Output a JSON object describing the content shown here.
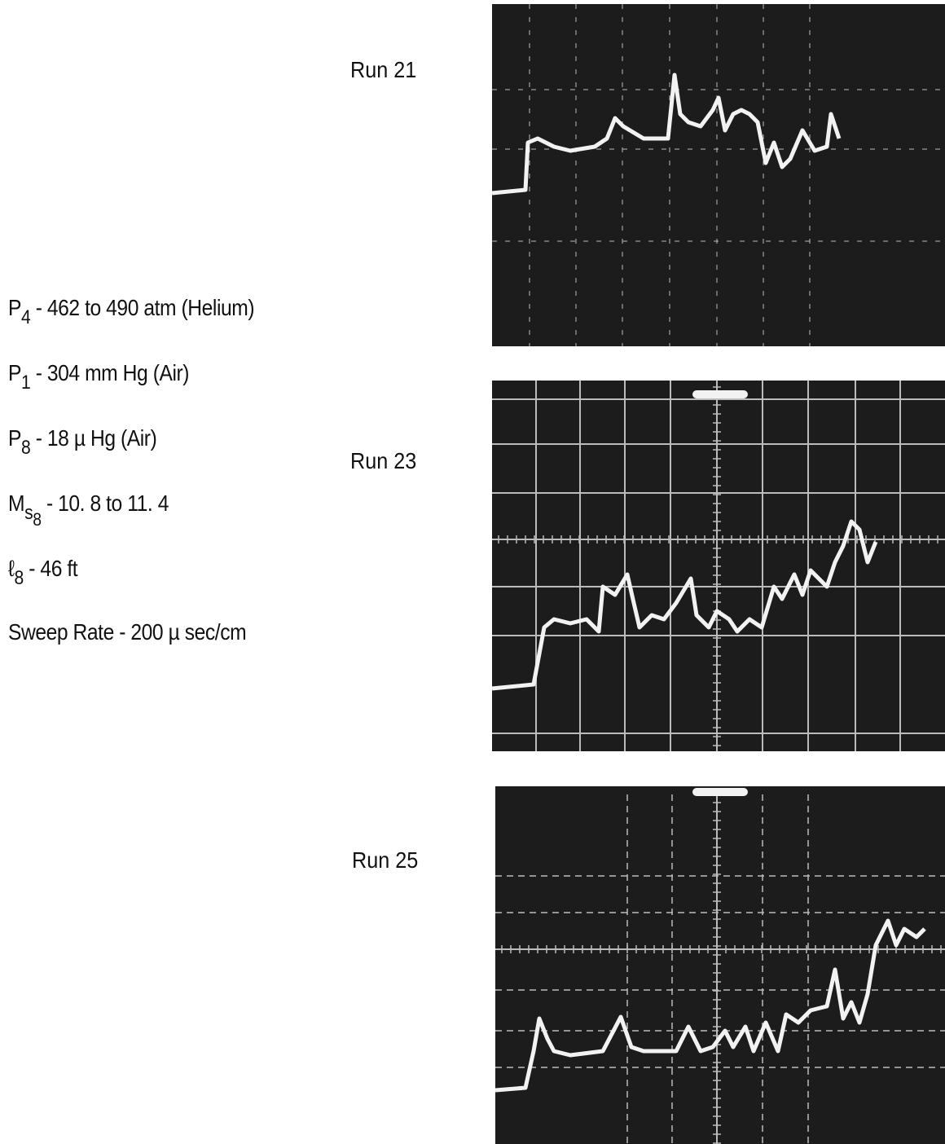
{
  "conditions": [
    {
      "symbol": "P",
      "sub": "4",
      "text": " - 462 to 490 atm (Helium)"
    },
    {
      "symbol": "P",
      "sub": "1",
      "text": " - 304 mm Hg (Air)"
    },
    {
      "symbol": "P",
      "sub": "8",
      "text": " - 18 µ Hg (Air)"
    },
    {
      "symbol": "M",
      "sub": "s",
      "subsub": "8",
      "text": " - 10. 8 to 11. 4"
    },
    {
      "symbol": "ℓ",
      "sub": "8",
      "text": " - 46 ft"
    },
    {
      "text": "Sweep Rate - 200 µ sec/cm"
    }
  ],
  "runs": [
    {
      "label": "Run 21"
    },
    {
      "label": "Run 23"
    },
    {
      "label": "Run 25"
    }
  ]
}
